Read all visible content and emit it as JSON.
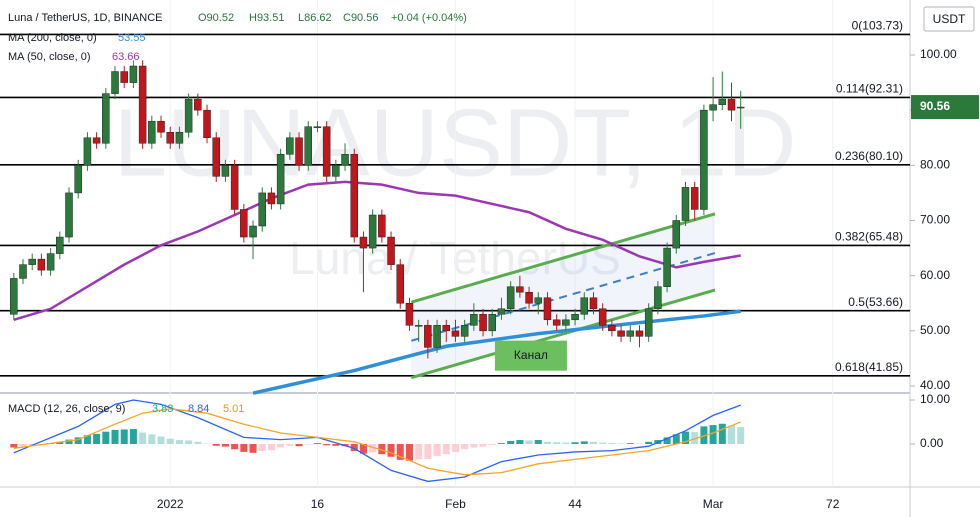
{
  "chart_data": [
    {
      "type": "candlestick",
      "header": {
        "symbol": "Luna / TetherUS, 1D, BINANCE",
        "open": "O90.52",
        "high": "H93.51",
        "low": "L86.62",
        "close": "C90.56",
        "change": "+0.04 (+0.04%)"
      },
      "watermark": {
        "ticker": "LUNAUSDT, 1D",
        "name": "Luna / TetherUS"
      },
      "unit": "USDT",
      "up_color": "#2b7a3b",
      "down_color": "#c0161c",
      "x": [
        -17,
        -16,
        -15,
        -14,
        -13,
        -12,
        -11,
        -10,
        -9,
        -8,
        -7,
        -6,
        -5,
        -4,
        -3,
        -2,
        -1,
        0,
        1,
        2,
        3,
        4,
        5,
        6,
        7,
        8,
        9,
        10,
        11,
        12,
        13,
        14,
        15,
        16,
        17,
        18,
        19,
        20,
        21,
        22,
        23,
        24,
        25,
        26,
        27,
        28,
        29,
        30,
        31,
        32,
        33,
        34,
        35,
        36,
        37,
        38,
        39,
        40,
        41,
        42,
        43,
        44,
        45,
        46,
        47,
        48,
        49,
        50,
        51,
        52,
        53,
        54,
        55,
        56,
        57,
        58,
        59,
        60,
        61,
        62
      ],
      "open": [
        53,
        59.5,
        62,
        63,
        61,
        64,
        67,
        75,
        80,
        85,
        84,
        93,
        97,
        95,
        98,
        84,
        88,
        86,
        84,
        86,
        92,
        90,
        85,
        78,
        80,
        72,
        67,
        69,
        75,
        73,
        82,
        85,
        80,
        87,
        87,
        78,
        80,
        82,
        67,
        65,
        71,
        67,
        62,
        55,
        51,
        51,
        47,
        51,
        50,
        49,
        51,
        53,
        50,
        53,
        54,
        58,
        57,
        55,
        56,
        52,
        51,
        52,
        53,
        56,
        54,
        51,
        50,
        49,
        50,
        49,
        54,
        58,
        65,
        70,
        76,
        72,
        90,
        91,
        92,
        90.52
      ],
      "high": [
        60.5,
        63,
        64,
        64,
        65,
        68,
        76,
        81,
        86,
        86,
        94,
        98,
        98,
        99,
        99,
        89,
        89,
        87,
        87,
        93,
        93,
        91,
        86,
        81,
        81,
        73,
        70,
        76,
        76,
        83,
        86,
        86,
        88,
        88,
        88,
        81,
        84,
        83,
        68,
        72,
        72,
        68,
        63,
        56,
        52,
        52,
        52,
        52,
        52,
        52,
        55,
        54,
        54,
        56,
        59,
        60,
        58,
        57,
        57,
        53,
        53,
        54,
        57,
        57,
        55,
        52,
        51,
        51,
        51,
        55,
        59,
        66,
        71,
        77,
        77,
        91,
        96,
        97,
        95,
        93.51
      ],
      "low": [
        52,
        58.5,
        61,
        60,
        60,
        63,
        66,
        74,
        79,
        83,
        83,
        92,
        94,
        94,
        83,
        83,
        85,
        83,
        83,
        85,
        89,
        84,
        77,
        77,
        71,
        66,
        63,
        68,
        72,
        72,
        81,
        79,
        79,
        86,
        77,
        77,
        79,
        66,
        57,
        64,
        66,
        61,
        54,
        50,
        48,
        45,
        46,
        48,
        48,
        48,
        50,
        49,
        49,
        52,
        53,
        56,
        54,
        53,
        51,
        50,
        50,
        51,
        52,
        53,
        50,
        49,
        48,
        48,
        47,
        48,
        53,
        57,
        64,
        69,
        70,
        71,
        88,
        90,
        88,
        86.62
      ],
      "close": [
        59.5,
        62,
        63,
        61,
        64,
        67,
        75,
        80,
        85,
        84,
        93,
        97,
        95,
        98,
        84,
        88,
        86,
        84,
        86,
        92,
        90,
        85,
        78,
        80,
        72,
        67,
        69,
        75,
        73,
        82,
        85,
        80,
        87,
        87,
        78,
        80,
        82,
        67,
        65,
        71,
        67,
        62,
        55,
        51,
        51,
        47,
        51,
        50,
        49,
        51,
        53,
        50,
        53,
        54,
        58,
        57,
        55,
        56,
        52,
        51,
        52,
        53,
        56,
        54,
        51,
        50,
        49,
        50,
        49,
        54,
        58,
        65,
        70,
        76,
        72,
        90,
        91,
        92,
        90,
        90.56
      ],
      "series": [
        {
          "name": "MA (200, close, 0)",
          "color": "#2f8fd8",
          "x": [
            9,
            20,
            30,
            40,
            50,
            58,
            62
          ],
          "values": [
            38.7,
            42.8,
            47.2,
            49.5,
            51.3,
            52.7,
            53.55
          ]
        },
        {
          "name": "MA (50, close, 0)",
          "color": "#9c36b5",
          "x": [
            -17,
            -13,
            -9,
            -5,
            -1,
            3,
            7,
            11,
            15,
            19,
            23,
            27,
            31,
            35,
            39,
            43,
            47,
            51,
            55,
            58,
            62
          ],
          "values": [
            52,
            54,
            58,
            62,
            65.5,
            68,
            71,
            74,
            76.5,
            77,
            76.5,
            75,
            74.5,
            73,
            71.5,
            68.5,
            66.5,
            63.5,
            61.5,
            62.5,
            63.66
          ]
        }
      ],
      "levels": [
        {
          "value": 103.73,
          "label": "0(103.73)"
        },
        {
          "value": 92.31,
          "label": "0.114(92.31)"
        },
        {
          "value": 80.1,
          "label": "0.236(80.10)"
        },
        {
          "value": 65.48,
          "label": "0.382(65.48)"
        },
        {
          "value": 53.66,
          "label": "0.5(53.66)"
        },
        {
          "value": 41.85,
          "label": "0.618(41.85)"
        }
      ],
      "channel": {
        "label": "Канал",
        "color": "#5aad4e",
        "mid_color": "#3d7ec9",
        "upper": {
          "x": [
            26.2,
            59.2
          ],
          "values": [
            55.2,
            71.2
          ]
        },
        "middle": {
          "x": [
            26.2,
            59.2
          ],
          "values": [
            48.2,
            64.1
          ]
        },
        "lower": {
          "x": [
            26.2,
            59.2
          ],
          "values": [
            41.5,
            57.4
          ]
        }
      },
      "xlim": [
        -18.5,
        80.4
      ],
      "ylim": [
        38.73,
        109.97
      ],
      "yticks": [
        {
          "value": 40,
          "label": "40.00"
        },
        {
          "value": 50,
          "label": "50.00"
        },
        {
          "value": 60,
          "label": "60.00"
        },
        {
          "value": 70,
          "label": "70.00"
        },
        {
          "value": 80,
          "label": "80.00"
        },
        {
          "value": 90,
          "label": "90.00"
        },
        {
          "value": 100,
          "label": "100.00"
        }
      ]
    },
    {
      "type": "macd",
      "name": "MACD (12, 26, close, 9)",
      "histogram": [
        -0.8,
        -0.6,
        -0.4,
        -0.2,
        0.2,
        0.5,
        1.0,
        1.5,
        2.0,
        2.3,
        2.8,
        3.2,
        3.3,
        3.4,
        2.6,
        2.2,
        1.7,
        1.2,
        0.9,
        0.8,
        0.5,
        0.1,
        -0.4,
        -0.6,
        -1.2,
        -1.8,
        -2.0,
        -1.6,
        -1.4,
        -0.8,
        -0.4,
        -0.5,
        -0.1,
        0.2,
        -0.3,
        -0.4,
        -0.5,
        -1.6,
        -2.2,
        -1.9,
        -2.3,
        -2.9,
        -3.6,
        -3.8,
        -3.5,
        -3.4,
        -2.7,
        -2.3,
        -1.8,
        -1.2,
        -0.8,
        -0.6,
        -0.2,
        0.2,
        0.7,
        0.9,
        0.8,
        0.9,
        0.5,
        0.4,
        0.3,
        0.4,
        0.6,
        0.5,
        0.3,
        0.2,
        0.1,
        0.2,
        0.1,
        0.5,
        0.9,
        1.5,
        2.2,
        2.8,
        2.7,
        4.0,
        4.3,
        4.6,
        4.2,
        3.83
      ],
      "series": [
        {
          "name": "MACD",
          "color": "#2962ff",
          "x": [
            -17,
            -10,
            -6,
            -4,
            -1,
            3,
            8,
            12,
            16,
            20,
            24,
            28,
            32,
            36,
            40,
            44,
            48,
            52,
            56,
            59,
            62
          ],
          "values": [
            -2,
            4,
            9,
            10,
            9,
            6,
            1.5,
            1,
            1.5,
            -1,
            -6,
            -8.5,
            -7.5,
            -4,
            -2.5,
            -1.8,
            -1.5,
            -0.5,
            3,
            6.5,
            8.84
          ]
        },
        {
          "name": "Signal",
          "color": "#f5a623",
          "x": [
            -17,
            -10,
            -6,
            -3,
            0,
            4,
            8,
            12,
            16,
            20,
            24,
            28,
            32,
            36,
            40,
            44,
            48,
            52,
            56,
            59,
            62
          ],
          "values": [
            -1,
            1,
            4.5,
            7,
            8,
            7,
            4.5,
            2.5,
            1.5,
            0.5,
            -2,
            -5.5,
            -7,
            -6.5,
            -4.5,
            -3.5,
            -2.5,
            -1.5,
            0.5,
            2.5,
            5.01
          ]
        }
      ],
      "xlim": [
        -18.5,
        80.4
      ],
      "ylim": [
        -9.77,
        11.59
      ],
      "yticks": [
        {
          "value": 0,
          "label": "0.00"
        },
        {
          "value": 10,
          "label": "10.00"
        }
      ],
      "xticks": [
        {
          "value": 0,
          "label": "2022"
        },
        16,
        {
          "value": 31,
          "label": "Feb"
        },
        44,
        {
          "value": 59,
          "label": "Mar"
        },
        72
      ]
    }
  ]
}
